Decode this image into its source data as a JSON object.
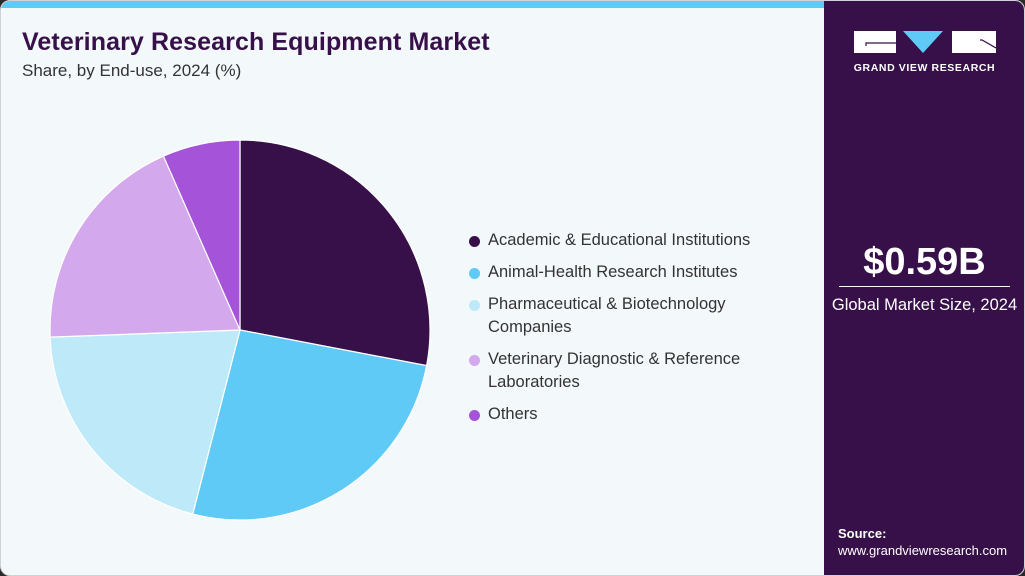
{
  "header": {
    "title": "Veterinary Research Equipment Market",
    "subtitle": "Share, by End-use, 2024 (%)"
  },
  "legend": {
    "items": [
      {
        "label": "Academic & Educational Institutions",
        "color": "#37104a"
      },
      {
        "label": "Animal-Health Research Institutes",
        "color": "#5ecaf5"
      },
      {
        "label": "Pharmaceutical & Biotechnology Companies",
        "color": "#bde9f9"
      },
      {
        "label": "Veterinary Diagnostic & Reference Laboratories",
        "color": "#d4a8ec"
      },
      {
        "label": "Others",
        "color": "#a553d9"
      }
    ]
  },
  "side_panel": {
    "logo_text": "GRAND VIEW RESEARCH",
    "market_value": "$0.59B",
    "market_label": "Global Market Size, 2024",
    "source_label": "Source:",
    "source_url": "www.grandviewresearch.com"
  },
  "colors": {
    "brand_dark": "#37104a",
    "accent_cyan": "#5ecaf5",
    "background": "#f3f8fb"
  },
  "chart_data": {
    "type": "pie",
    "title": "Veterinary Research Equipment Market",
    "subtitle": "Share, by End-use, 2024 (%)",
    "categories": [
      "Academic & Educational Institutions",
      "Animal-Health Research Institutes",
      "Pharmaceutical & Biotechnology Companies",
      "Veterinary Diagnostic & Reference Laboratories",
      "Others"
    ],
    "values": [
      28.0,
      26.0,
      20.4,
      19.0,
      6.6
    ],
    "colors": [
      "#37104a",
      "#5ecaf5",
      "#bde9f9",
      "#d4a8ec",
      "#a553d9"
    ],
    "start_angle": "12 o'clock, clockwise",
    "legend_position": "right",
    "unit": "%"
  }
}
